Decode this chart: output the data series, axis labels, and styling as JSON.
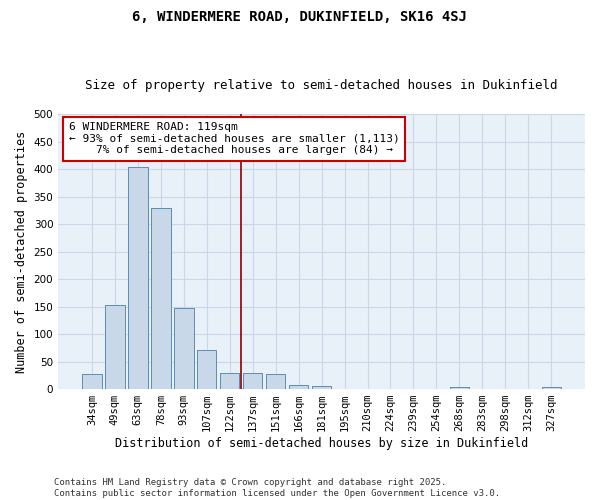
{
  "title1": "6, WINDERMERE ROAD, DUKINFIELD, SK16 4SJ",
  "title2": "Size of property relative to semi-detached houses in Dukinfield",
  "xlabel": "Distribution of semi-detached houses by size in Dukinfield",
  "ylabel": "Number of semi-detached properties",
  "bar_labels": [
    "34sqm",
    "49sqm",
    "63sqm",
    "78sqm",
    "93sqm",
    "107sqm",
    "122sqm",
    "137sqm",
    "151sqm",
    "166sqm",
    "181sqm",
    "195sqm",
    "210sqm",
    "224sqm",
    "239sqm",
    "254sqm",
    "268sqm",
    "283sqm",
    "298sqm",
    "312sqm",
    "327sqm"
  ],
  "bar_values": [
    27,
    153,
    403,
    330,
    148,
    71,
    30,
    30,
    28,
    8,
    6,
    0,
    0,
    0,
    0,
    0,
    4,
    0,
    0,
    0,
    4
  ],
  "bar_color": "#c8d8e8",
  "bar_edge_color": "#5b8db8",
  "vline_x": 6.5,
  "vline_color": "#8b0000",
  "annotation_line1": "6 WINDERMERE ROAD: 119sqm",
  "annotation_line2": "← 93% of semi-detached houses are smaller (1,113)",
  "annotation_line3": "    7% of semi-detached houses are larger (84) →",
  "annotation_box_color": "#ffffff",
  "annotation_box_edge": "#cc0000",
  "ylim": [
    0,
    500
  ],
  "yticks": [
    0,
    50,
    100,
    150,
    200,
    250,
    300,
    350,
    400,
    450,
    500
  ],
  "grid_color": "#c8d8e8",
  "background_color": "#e8f0f8",
  "footer_text": "Contains HM Land Registry data © Crown copyright and database right 2025.\nContains public sector information licensed under the Open Government Licence v3.0.",
  "title1_fontsize": 10,
  "title2_fontsize": 9,
  "axis_label_fontsize": 8.5,
  "tick_fontsize": 7.5,
  "annotation_fontsize": 8,
  "footer_fontsize": 6.5
}
